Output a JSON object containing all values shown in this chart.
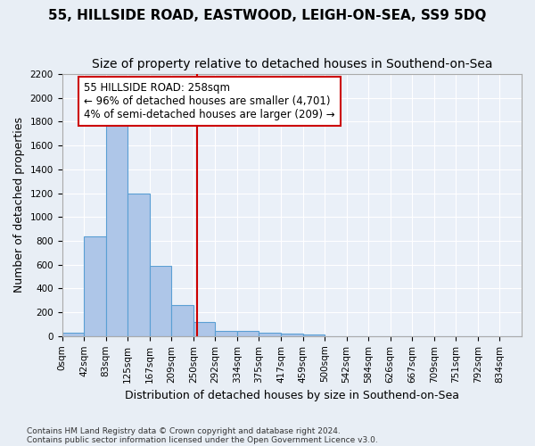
{
  "title": "55, HILLSIDE ROAD, EASTWOOD, LEIGH-ON-SEA, SS9 5DQ",
  "subtitle": "Size of property relative to detached houses in Southend-on-Sea",
  "xlabel": "Distribution of detached houses by size in Southend-on-Sea",
  "ylabel": "Number of detached properties",
  "footnote1": "Contains HM Land Registry data © Crown copyright and database right 2024.",
  "footnote2": "Contains public sector information licensed under the Open Government Licence v3.0.",
  "bin_labels": [
    "0sqm",
    "42sqm",
    "83sqm",
    "125sqm",
    "167sqm",
    "209sqm",
    "250sqm",
    "292sqm",
    "334sqm",
    "375sqm",
    "417sqm",
    "459sqm",
    "500sqm",
    "542sqm",
    "584sqm",
    "626sqm",
    "667sqm",
    "709sqm",
    "751sqm",
    "792sqm",
    "834sqm"
  ],
  "bar_values": [
    25,
    840,
    1800,
    1200,
    590,
    260,
    120,
    45,
    45,
    30,
    20,
    10,
    0,
    0,
    0,
    0,
    0,
    0,
    0,
    0,
    0
  ],
  "bar_color": "#aec6e8",
  "bar_edge_color": "#5a9fd4",
  "highlight_line_color": "#cc0000",
  "ylim": [
    0,
    2200
  ],
  "yticks": [
    0,
    200,
    400,
    600,
    800,
    1000,
    1200,
    1400,
    1600,
    1800,
    2000,
    2200
  ],
  "annotation_text": "55 HILLSIDE ROAD: 258sqm\n← 96% of detached houses are smaller (4,701)\n4% of semi-detached houses are larger (209) →",
  "annotation_box_color": "#ffffff",
  "annotation_box_edge_color": "#cc0000",
  "bg_color": "#e8eef5",
  "plot_bg_color": "#eaf0f8",
  "title_fontsize": 11,
  "subtitle_fontsize": 10,
  "axis_label_fontsize": 9,
  "tick_fontsize": 7.5,
  "annotation_fontsize": 8.5,
  "property_sqm": 258,
  "bin_start": [
    0,
    42,
    83,
    125,
    167,
    209,
    250,
    292,
    334,
    375,
    417,
    459,
    500,
    542,
    584,
    626,
    667,
    709,
    751,
    792,
    834
  ]
}
